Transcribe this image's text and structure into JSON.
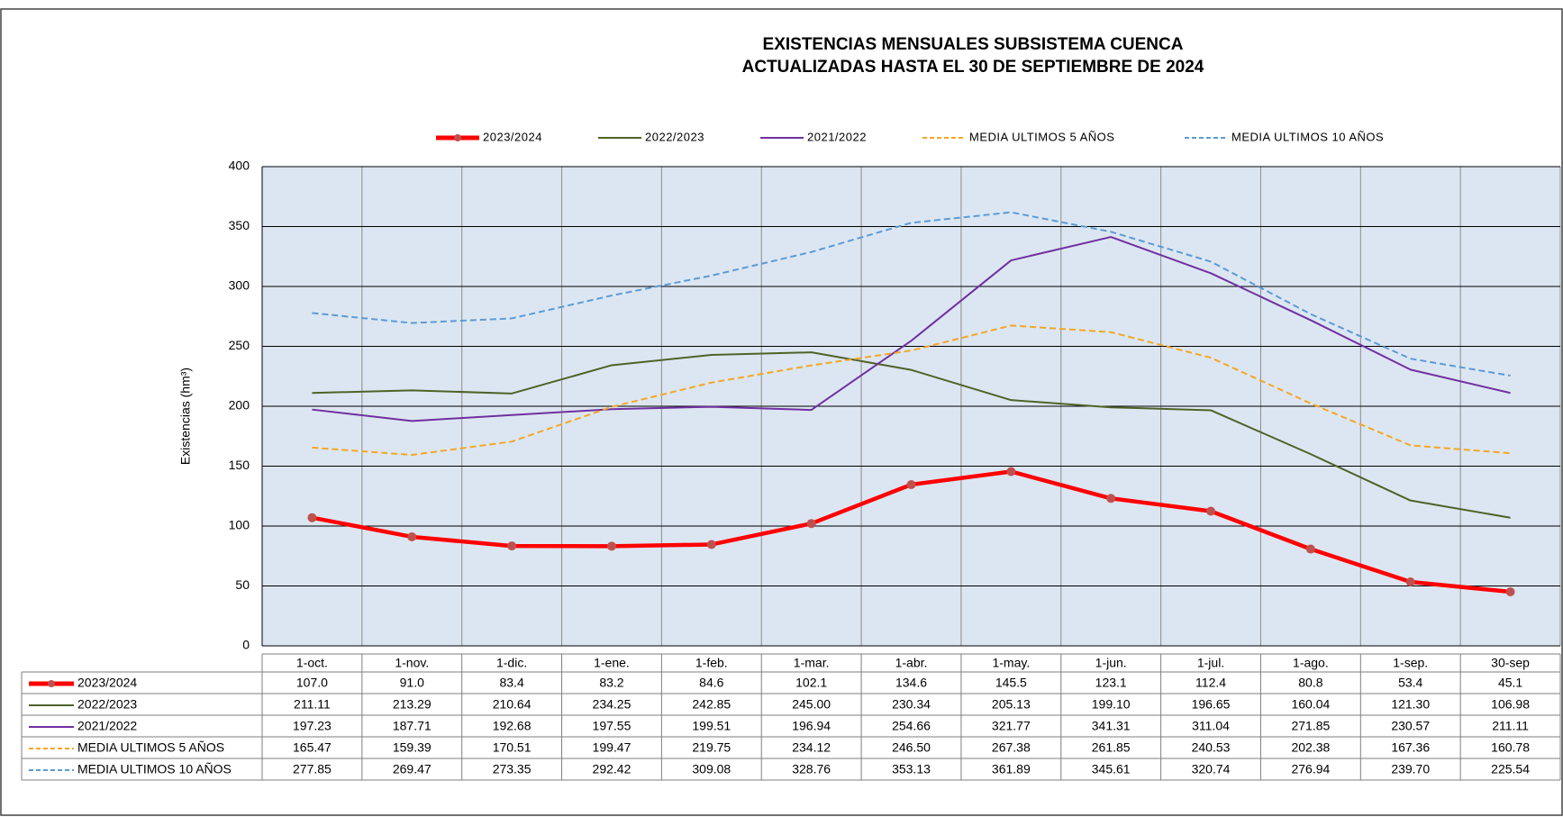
{
  "chart_data": {
    "type": "line",
    "title": "EXISTENCIAS MENSUALES SUBSISTEMA CUENCA",
    "subtitle": "ACTUALIZADAS HASTA EL 30 DE SEPTIEMBRE DE 2024",
    "y_label": "Existencias (hm³)",
    "categories": [
      "1-oct.",
      "1-nov.",
      "1-dic.",
      "1-ene.",
      "1-feb.",
      "1-mar.",
      "1-abr.",
      "1-may.",
      "1-jun.",
      "1-jul.",
      "1-ago.",
      "1-sep.",
      "30-sep"
    ],
    "ylim": [
      0,
      400
    ],
    "yticks": [
      0,
      50,
      100,
      150,
      200,
      250,
      300,
      350,
      400
    ],
    "grid": true,
    "series": [
      {
        "name": "2023/2024",
        "color": "#ff0000",
        "marker_color": "#c0504d",
        "width": 4.5,
        "dashed": false,
        "markers": true,
        "values": [
          107.0,
          91.0,
          83.4,
          83.2,
          84.6,
          102.1,
          134.6,
          145.5,
          123.1,
          112.4,
          80.8,
          53.4,
          45.1
        ],
        "value_labels": [
          "107.0",
          "91.0",
          "83.4",
          "83.2",
          "84.6",
          "102.1",
          "134.6",
          "145.5",
          "123.1",
          "112.4",
          "80.8",
          "53.4",
          "45.1"
        ]
      },
      {
        "name": "2022/2023",
        "color": "#4f6228",
        "width": 2,
        "dashed": false,
        "markers": false,
        "values": [
          211.11,
          213.29,
          210.64,
          234.25,
          242.85,
          245.0,
          230.34,
          205.13,
          199.1,
          196.65,
          160.04,
          121.3,
          106.98
        ],
        "value_labels": [
          "211.11",
          "213.29",
          "210.64",
          "234.25",
          "242.85",
          "245.00",
          "230.34",
          "205.13",
          "199.10",
          "196.65",
          "160.04",
          "121.30",
          "106.98"
        ]
      },
      {
        "name": "2021/2022",
        "color": "#7030a0",
        "width": 2,
        "dashed": false,
        "markers": false,
        "values": [
          197.23,
          187.71,
          192.68,
          197.55,
          199.51,
          196.94,
          254.66,
          321.77,
          341.31,
          311.04,
          271.85,
          230.57,
          211.11
        ],
        "value_labels": [
          "197.23",
          "187.71",
          "192.68",
          "197.55",
          "199.51",
          "196.94",
          "254.66",
          "321.77",
          "341.31",
          "311.04",
          "271.85",
          "230.57",
          "211.11"
        ]
      },
      {
        "name": "MEDIA ULTIMOS 5 AÑOS",
        "color": "#f5a623",
        "width": 2,
        "dashed": true,
        "markers": false,
        "values": [
          165.47,
          159.39,
          170.51,
          199.47,
          219.75,
          234.12,
          246.5,
          267.38,
          261.85,
          240.53,
          202.38,
          167.36,
          160.78
        ],
        "value_labels": [
          "165.47",
          "159.39",
          "170.51",
          "199.47",
          "219.75",
          "234.12",
          "246.50",
          "267.38",
          "261.85",
          "240.53",
          "202.38",
          "167.36",
          "160.78"
        ]
      },
      {
        "name": "MEDIA ULTIMOS 10 AÑOS",
        "color": "#5b9bd5",
        "width": 2,
        "dashed": true,
        "markers": false,
        "values": [
          277.85,
          269.47,
          273.35,
          292.42,
          309.08,
          328.76,
          353.13,
          361.89,
          345.61,
          320.74,
          276.94,
          239.7,
          225.54
        ],
        "value_labels": [
          "277.85",
          "269.47",
          "273.35",
          "292.42",
          "309.08",
          "328.76",
          "353.13",
          "361.89",
          "345.61",
          "320.74",
          "276.94",
          "239.70",
          "225.54"
        ]
      }
    ]
  }
}
